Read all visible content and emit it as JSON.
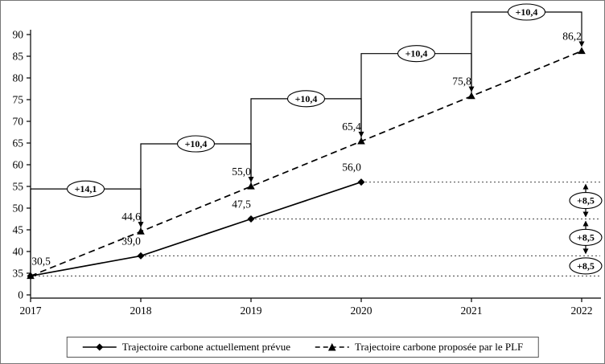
{
  "colors": {
    "line": "#000000",
    "background": "#ffffff"
  },
  "legend": {
    "series1": "Trajectoire carbone actuellement prévue",
    "series2": "Trajectoire carbone proposée par le PLF"
  },
  "chart_data": {
    "type": "line",
    "title": "",
    "xlabel": "",
    "ylabel": "",
    "x": [
      2017,
      2018,
      2019,
      2020,
      2021,
      2022
    ],
    "x_labels": [
      "2017",
      "2018",
      "2019",
      "2020",
      "2021",
      "2022"
    ],
    "y_ticks": [
      90,
      85,
      80,
      75,
      70,
      65,
      60,
      55,
      50,
      45,
      40,
      35,
      0
    ],
    "y_tick_labels": [
      "90",
      "85",
      "80",
      "75",
      "70",
      "65",
      "60",
      "55",
      "50",
      "45",
      "40",
      "35",
      "0"
    ],
    "grid": "off",
    "legend_position": "bottom",
    "series": [
      {
        "name": "Trajectoire carbone actuellement prévue",
        "style": "solid",
        "marker": "diamond",
        "points": [
          {
            "x": 2017,
            "y": 30.5,
            "label": "30,5"
          },
          {
            "x": 2018,
            "y": 39.0,
            "label": "39,0"
          },
          {
            "x": 2019,
            "y": 47.5,
            "label": "47,5"
          },
          {
            "x": 2020,
            "y": 56.0,
            "label": "56,0"
          }
        ]
      },
      {
        "name": "Trajectoire carbone proposée par le PLF",
        "style": "dashed",
        "marker": "triangle",
        "points": [
          {
            "x": 2017,
            "y": 30.5,
            "label": ""
          },
          {
            "x": 2018,
            "y": 44.6,
            "label": "44,6"
          },
          {
            "x": 2019,
            "y": 55.0,
            "label": "55,0"
          },
          {
            "x": 2020,
            "y": 65.4,
            "label": "65,4"
          },
          {
            "x": 2021,
            "y": 75.8,
            "label": "75,8"
          },
          {
            "x": 2022,
            "y": 86.2,
            "label": "86,2"
          }
        ]
      }
    ],
    "step_annotations": [
      {
        "from": 2017,
        "to": 2018,
        "label": "+14,1"
      },
      {
        "from": 2018,
        "to": 2019,
        "label": "+10,4"
      },
      {
        "from": 2019,
        "to": 2020,
        "label": "+10,4"
      },
      {
        "from": 2020,
        "to": 2021,
        "label": "+10,4"
      },
      {
        "from": 2021,
        "to": 2022,
        "label": "+10,4"
      }
    ],
    "increment_annotations": {
      "label": "+8,5",
      "levels": [
        30.5,
        39.0,
        47.5,
        56.0
      ]
    },
    "dotted_levels": [
      {
        "value": 30.5,
        "from": 2017
      },
      {
        "value": 39.0,
        "from": 2018
      },
      {
        "value": 47.5,
        "from": 2019
      },
      {
        "value": 56.0,
        "from": 2020
      }
    ]
  }
}
